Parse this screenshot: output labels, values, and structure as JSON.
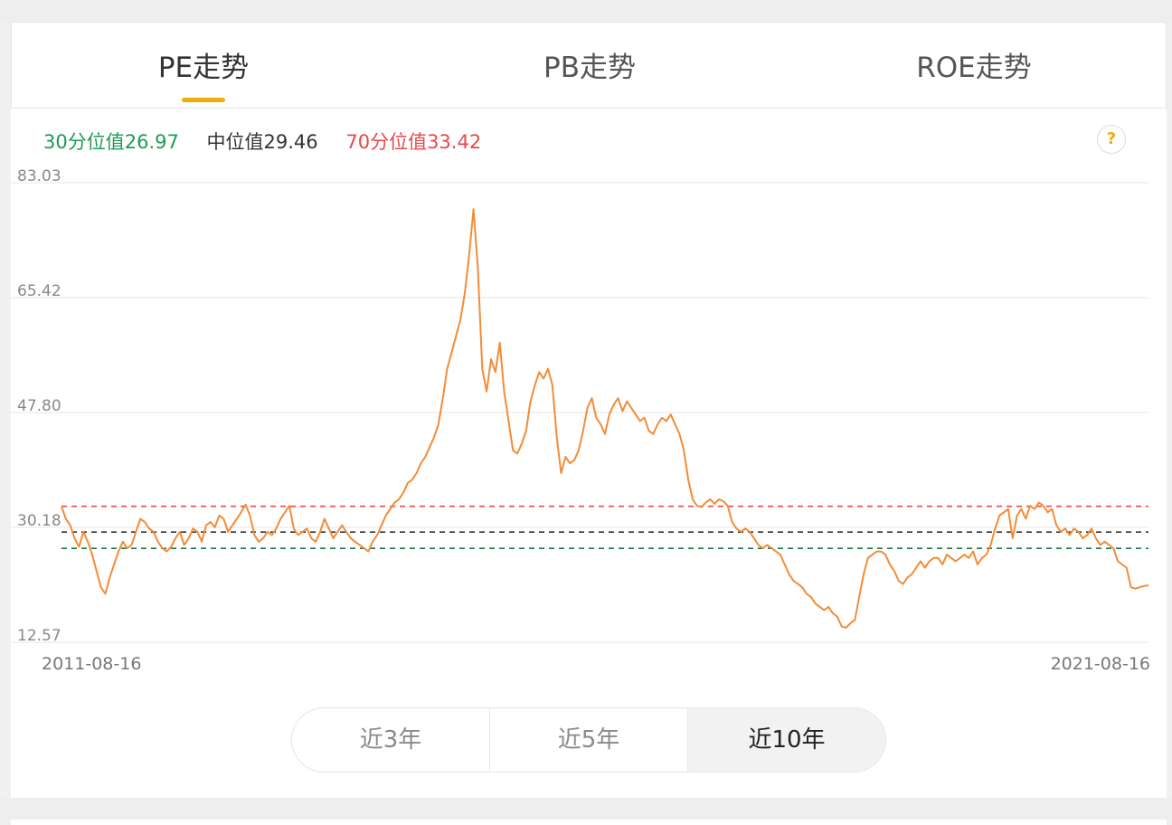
{
  "tabs": [
    {
      "label": "PE走势",
      "active": true
    },
    {
      "label": "PB走势",
      "active": false
    },
    {
      "label": "ROE走势",
      "active": false
    }
  ],
  "legend": {
    "p30": "30分位值26.97",
    "median": "中位值29.46",
    "p70": "70分位值33.42"
  },
  "help_icon": "?",
  "colors": {
    "line": "#f28c38",
    "p30": "#1e7a44",
    "median": "#333333",
    "p70": "#e8474b",
    "tab_accent": "#f0ad0a"
  },
  "chart_data": {
    "type": "line",
    "title": "",
    "xlabel": "",
    "ylabel": "",
    "x_start": "2011-08-16",
    "x_end": "2021-08-16",
    "y_ticks": [
      "83.03",
      "65.42",
      "47.80",
      "30.18",
      "12.57"
    ],
    "ylim": [
      12.57,
      83.03
    ],
    "grid": true,
    "reference_lines": [
      {
        "name": "30分位值",
        "value": 26.97
      },
      {
        "name": "中位值",
        "value": 29.46
      },
      {
        "name": "70分位值",
        "value": 33.42
      }
    ],
    "series": [
      {
        "values": [
          33.4,
          31.5,
          30.5,
          28.5,
          27.2,
          29.5,
          28.0,
          26.0,
          23.5,
          21.0,
          20.0,
          22.5,
          24.5,
          26.5,
          28.0,
          27.0,
          27.5,
          29.5,
          31.5,
          31.0,
          30.0,
          29.5,
          28.0,
          27.0,
          26.5,
          27.2,
          28.5,
          29.5,
          27.5,
          28.5,
          30.0,
          29.5,
          28.0,
          30.5,
          31.0,
          30.2,
          32.0,
          31.5,
          29.5,
          30.5,
          31.5,
          32.5,
          33.7,
          32.0,
          29.0,
          28.0,
          28.5,
          29.5,
          29.0,
          30.0,
          31.5,
          32.5,
          33.5,
          30.0,
          29.0,
          29.5,
          30.0,
          28.5,
          28.0,
          29.5,
          31.5,
          30.0,
          28.5,
          29.5,
          30.5,
          29.5,
          28.5,
          28.0,
          27.5,
          27.0,
          26.5,
          28.0,
          29.0,
          30.5,
          32.0,
          33.0,
          34.0,
          34.5,
          35.5,
          37.0,
          37.5,
          38.5,
          40.0,
          41.0,
          42.5,
          44.0,
          46.0,
          50.0,
          54.5,
          57.0,
          59.5,
          62.0,
          66.0,
          72.0,
          79.0,
          70.0,
          54.5,
          51.0,
          56.0,
          54.0,
          58.5,
          51.0,
          46.5,
          42.0,
          41.5,
          43.0,
          45.0,
          49.5,
          52.0,
          54.0,
          53.0,
          54.5,
          52.0,
          44.0,
          38.5,
          41.0,
          40.0,
          40.5,
          42.0,
          45.0,
          48.5,
          50.0,
          47.0,
          46.0,
          44.5,
          47.5,
          49.0,
          50.0,
          48.0,
          49.5,
          48.5,
          47.5,
          46.5,
          47.0,
          45.0,
          44.5,
          46.0,
          47.0,
          46.5,
          47.5,
          46.0,
          44.5,
          42.0,
          37.5,
          34.5,
          33.5,
          33.3,
          34.0,
          34.5,
          33.8,
          34.5,
          34.2,
          33.5,
          31.0,
          30.0,
          29.5,
          30.0,
          29.5,
          28.5,
          27.5,
          27.0,
          27.5,
          27.0,
          26.5,
          26.0,
          24.5,
          23.0,
          22.0,
          21.5,
          21.0,
          20.0,
          19.5,
          18.5,
          18.0,
          17.5,
          18.0,
          17.0,
          16.5,
          15.0,
          14.8,
          15.5,
          16.0,
          19.5,
          23.0,
          25.5,
          26.0,
          26.5,
          26.5,
          26.0,
          24.5,
          23.5,
          22.0,
          21.5,
          22.5,
          23.0,
          24.0,
          25.0,
          24.0,
          25.0,
          25.5,
          25.5,
          24.5,
          26.0,
          25.5,
          25.0,
          25.5,
          26.0,
          25.5,
          26.5,
          24.5,
          25.5,
          26.0,
          27.5,
          30.0,
          32.0,
          32.5,
          33.0,
          28.5,
          32.0,
          33.0,
          31.5,
          33.5,
          33.0,
          34.0,
          33.5,
          32.5,
          33.0,
          30.5,
          29.5,
          30.0,
          29.0,
          30.0,
          29.5,
          28.5,
          29.0,
          30.0,
          28.5,
          27.5,
          28.0,
          27.5,
          27.0,
          25.0,
          24.5,
          24.0,
          21.0,
          20.8,
          21.0,
          21.2,
          21.3
        ]
      }
    ]
  },
  "range_buttons": [
    {
      "label": "近3年",
      "active": false
    },
    {
      "label": "近5年",
      "active": false
    },
    {
      "label": "近10年",
      "active": true
    }
  ]
}
